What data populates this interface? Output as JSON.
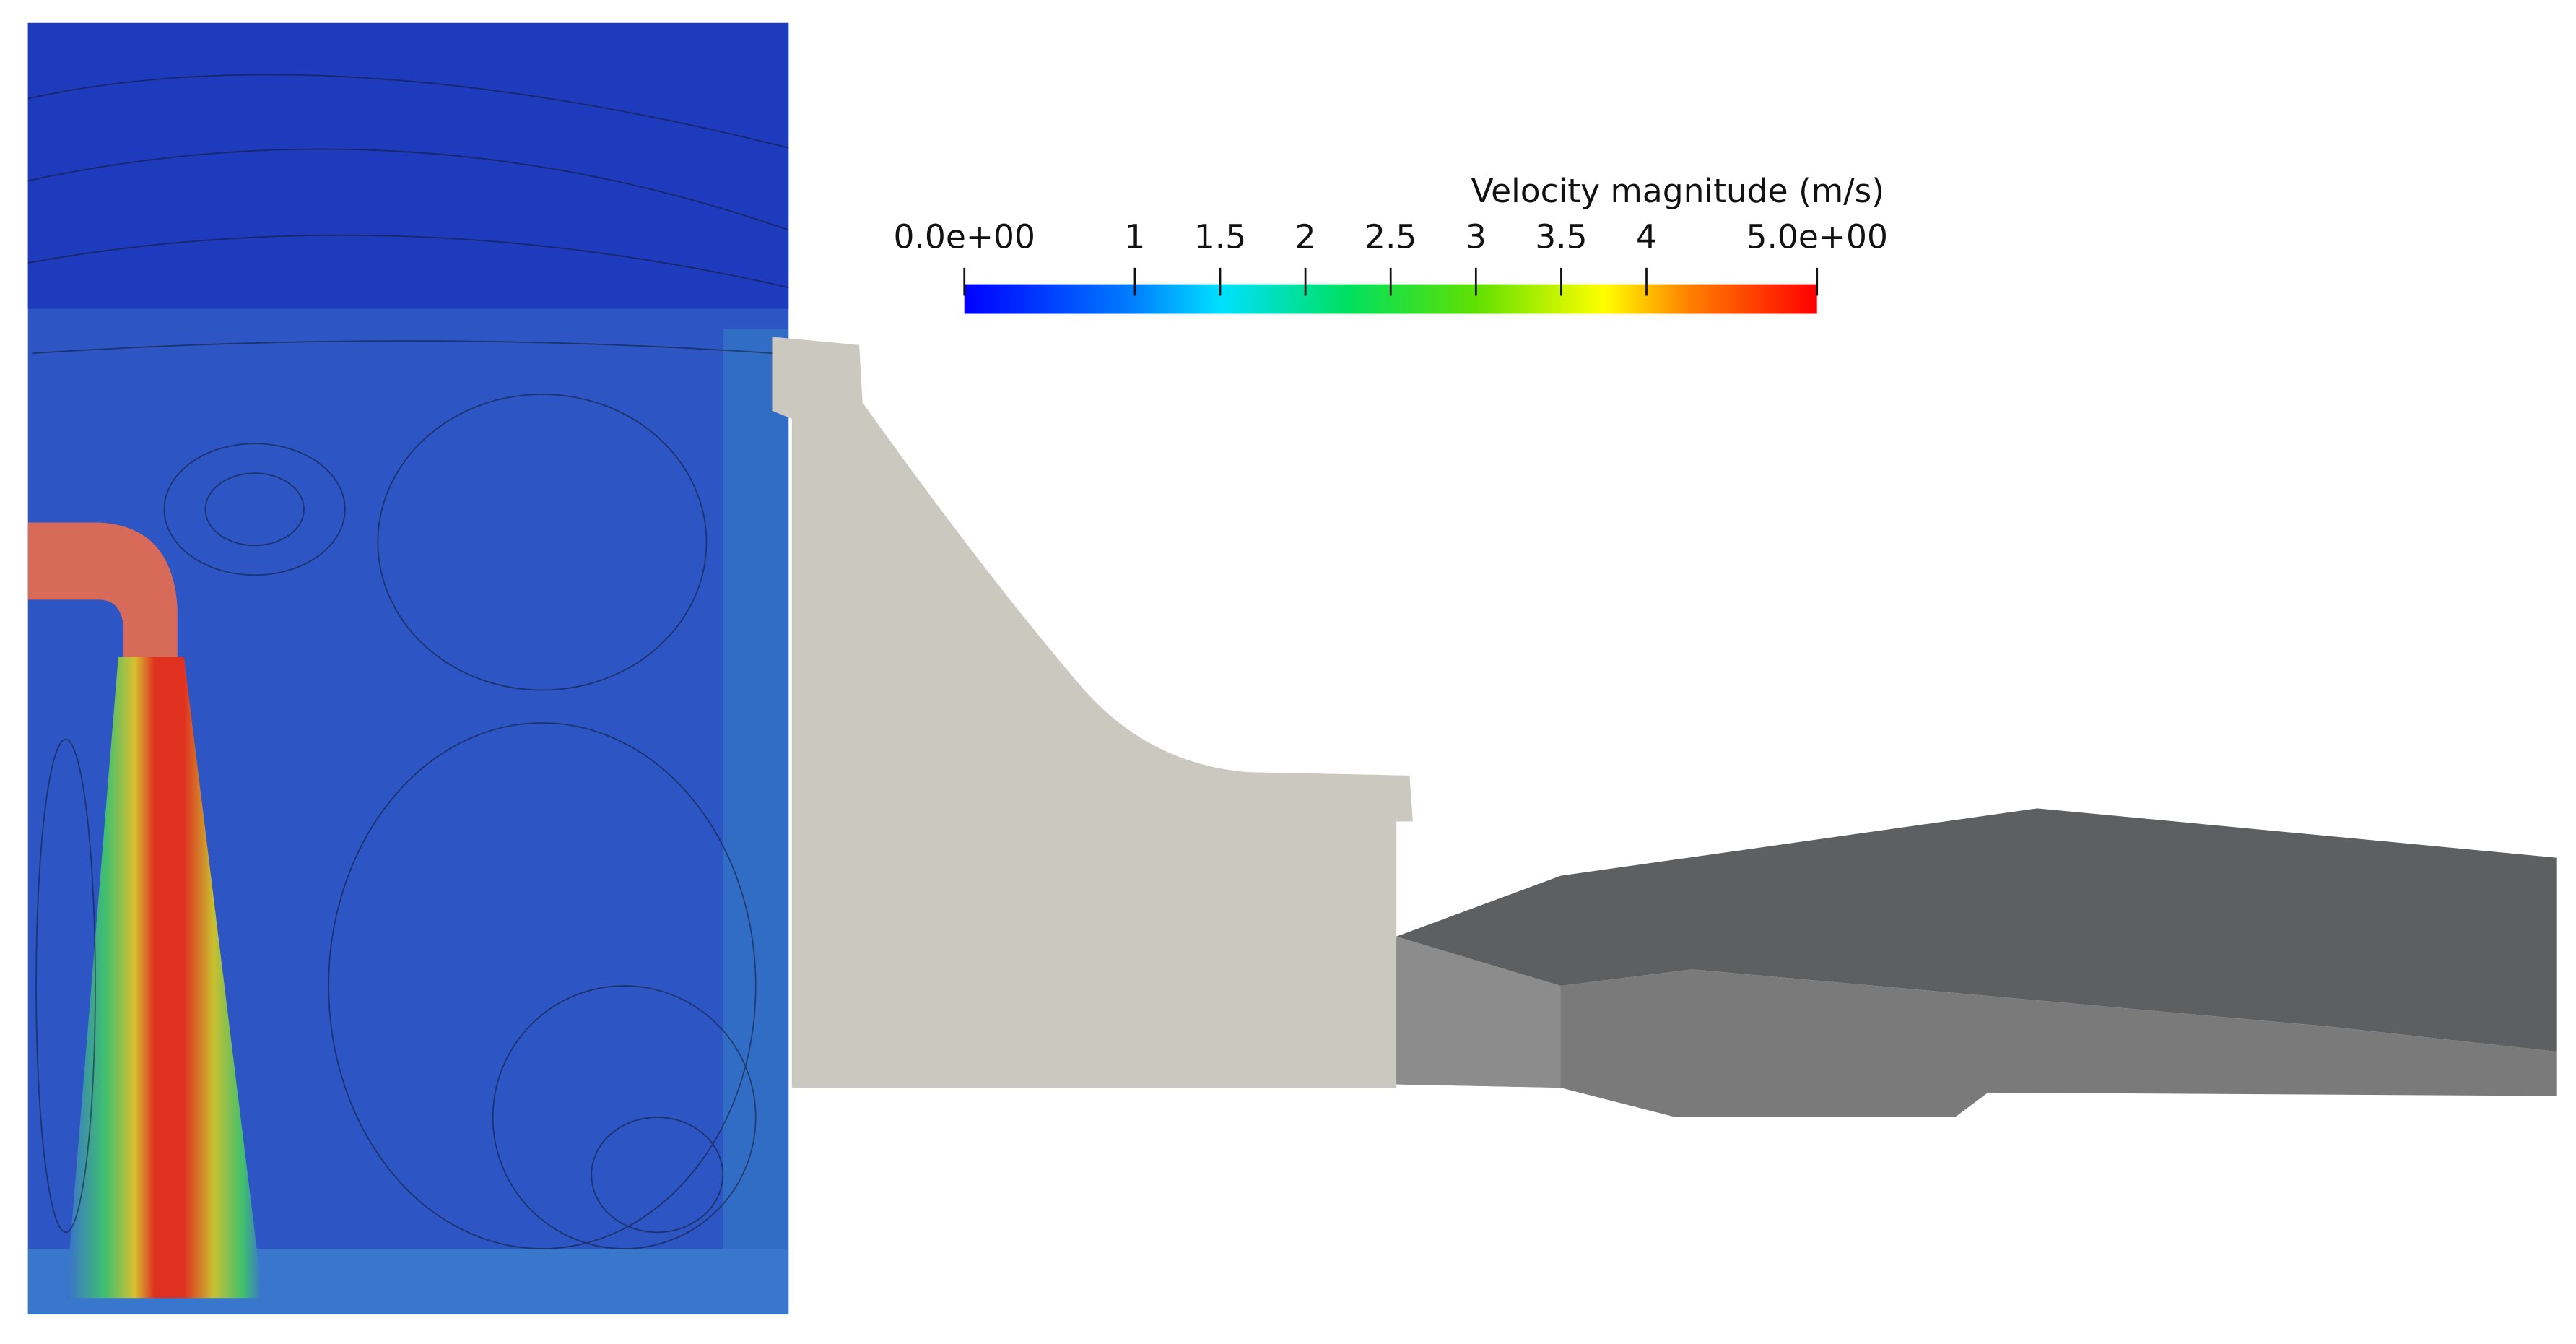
{
  "colorbar": {
    "title": "Velocity magnitude (m/s)",
    "range": [
      0,
      5
    ],
    "ticks": [
      {
        "value": 0,
        "label": "0.0e+00"
      },
      1,
      1.5,
      2,
      2.5,
      3,
      3.5,
      4,
      {
        "value": 5,
        "label": "5.0e+00"
      }
    ]
  }
}
